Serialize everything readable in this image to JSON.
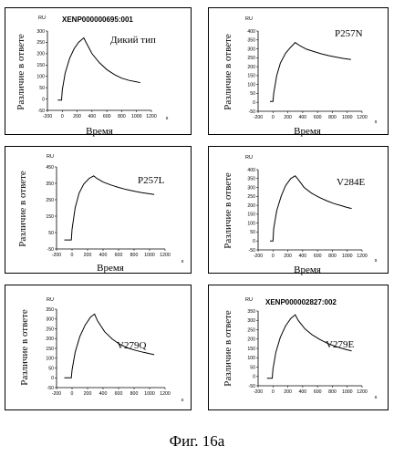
{
  "caption": "Фиг. 16а",
  "chart_data": [
    {
      "type": "line",
      "title": "XENP000000695:001",
      "annotation": "Дикий тип",
      "xlabel": "Время",
      "ylabel": "Различие в ответе",
      "yunit": "RU",
      "xunit": "s",
      "xlim": [
        -200,
        1200
      ],
      "ylim": [
        -50,
        300
      ],
      "xticks": [
        -200,
        0,
        200,
        400,
        600,
        800,
        1000,
        1200
      ],
      "yticks": [
        -50,
        0,
        50,
        100,
        150,
        200,
        250,
        300
      ],
      "points": [
        [
          -60,
          -5
        ],
        [
          -10,
          -5
        ],
        [
          0,
          40
        ],
        [
          40,
          115
        ],
        [
          100,
          180
        ],
        [
          160,
          222
        ],
        [
          220,
          250
        ],
        [
          290,
          270
        ],
        [
          320,
          250
        ],
        [
          400,
          200
        ],
        [
          500,
          160
        ],
        [
          600,
          130
        ],
        [
          700,
          108
        ],
        [
          800,
          92
        ],
        [
          900,
          82
        ],
        [
          1000,
          76
        ],
        [
          1050,
          72
        ]
      ]
    },
    {
      "type": "line",
      "title": "",
      "annotation": "P257N",
      "xlabel": "Время",
      "ylabel": "Различие в ответе",
      "yunit": "RU",
      "xunit": "s",
      "xlim": [
        -200,
        1200
      ],
      "ylim": [
        -50,
        400
      ],
      "xticks": [
        -200,
        0,
        200,
        400,
        600,
        800,
        1000,
        1200
      ],
      "yticks": [
        -50,
        0,
        50,
        100,
        150,
        200,
        250,
        300,
        350,
        400
      ],
      "points": [
        [
          -40,
          5
        ],
        [
          0,
          5
        ],
        [
          10,
          50
        ],
        [
          50,
          150
        ],
        [
          100,
          220
        ],
        [
          170,
          275
        ],
        [
          240,
          310
        ],
        [
          300,
          335
        ],
        [
          360,
          318
        ],
        [
          450,
          298
        ],
        [
          550,
          285
        ],
        [
          650,
          272
        ],
        [
          750,
          262
        ],
        [
          850,
          254
        ],
        [
          950,
          246
        ],
        [
          1050,
          240
        ]
      ]
    },
    {
      "type": "line",
      "title": "",
      "annotation": "P257L",
      "xlabel": "Время",
      "ylabel": "Различие в ответе",
      "yunit": "RU",
      "xunit": "s",
      "xlim": [
        -200,
        1200
      ],
      "ylim": [
        -50,
        450
      ],
      "xticks": [
        -200,
        0,
        200,
        400,
        600,
        800,
        1000,
        1200
      ],
      "yticks": [
        -50,
        50,
        150,
        250,
        350,
        450
      ],
      "points": [
        [
          -100,
          5
        ],
        [
          -10,
          5
        ],
        [
          0,
          70
        ],
        [
          40,
          200
        ],
        [
          90,
          290
        ],
        [
          150,
          345
        ],
        [
          220,
          380
        ],
        [
          280,
          395
        ],
        [
          320,
          380
        ],
        [
          400,
          358
        ],
        [
          500,
          340
        ],
        [
          600,
          325
        ],
        [
          700,
          312
        ],
        [
          800,
          302
        ],
        [
          900,
          293
        ],
        [
          1000,
          286
        ],
        [
          1060,
          282
        ]
      ]
    },
    {
      "type": "line",
      "title": "",
      "annotation": "V284E",
      "xlabel": "Время",
      "ylabel": "Различие в ответе",
      "yunit": "RU",
      "xunit": "s",
      "xlim": [
        -200,
        1200
      ],
      "ylim": [
        -50,
        400
      ],
      "xticks": [
        -200,
        0,
        200,
        400,
        600,
        800,
        1000,
        1200
      ],
      "yticks": [
        -50,
        0,
        50,
        100,
        150,
        200,
        250,
        300,
        350,
        400
      ],
      "points": [
        [
          -40,
          0
        ],
        [
          0,
          0
        ],
        [
          10,
          70
        ],
        [
          50,
          170
        ],
        [
          110,
          250
        ],
        [
          170,
          310
        ],
        [
          240,
          350
        ],
        [
          300,
          365
        ],
        [
          340,
          345
        ],
        [
          420,
          300
        ],
        [
          520,
          268
        ],
        [
          620,
          245
        ],
        [
          720,
          226
        ],
        [
          820,
          210
        ],
        [
          920,
          198
        ],
        [
          1000,
          188
        ],
        [
          1060,
          182
        ]
      ]
    },
    {
      "type": "line",
      "title": "",
      "annotation": "V279Q",
      "xlabel": "",
      "ylabel": "Различие в ответе",
      "yunit": "RU",
      "xunit": "s",
      "xlim": [
        -200,
        1200
      ],
      "ylim": [
        -50,
        350
      ],
      "xticks": [
        -200,
        0,
        200,
        400,
        600,
        800,
        1000,
        1200
      ],
      "yticks": [
        -50,
        0,
        50,
        100,
        150,
        200,
        250,
        300,
        350
      ],
      "points": [
        [
          -100,
          0
        ],
        [
          -10,
          0
        ],
        [
          0,
          40
        ],
        [
          40,
          130
        ],
        [
          100,
          210
        ],
        [
          170,
          270
        ],
        [
          240,
          310
        ],
        [
          290,
          325
        ],
        [
          330,
          290
        ],
        [
          420,
          235
        ],
        [
          520,
          197
        ],
        [
          620,
          170
        ],
        [
          720,
          152
        ],
        [
          820,
          140
        ],
        [
          920,
          130
        ],
        [
          1000,
          123
        ],
        [
          1060,
          118
        ]
      ]
    },
    {
      "type": "line",
      "title": "XENP000002827:002",
      "annotation": "V279E",
      "xlabel": "",
      "ylabel": "Различие в ответе",
      "yunit": "RU",
      "xunit": "s",
      "xlim": [
        -200,
        1200
      ],
      "ylim": [
        -50,
        350
      ],
      "xticks": [
        -200,
        0,
        200,
        400,
        600,
        800,
        1000,
        1200
      ],
      "yticks": [
        -50,
        0,
        50,
        100,
        150,
        200,
        250,
        300,
        350
      ],
      "points": [
        [
          -80,
          -10
        ],
        [
          -10,
          -10
        ],
        [
          0,
          40
        ],
        [
          40,
          130
        ],
        [
          100,
          210
        ],
        [
          170,
          270
        ],
        [
          240,
          310
        ],
        [
          300,
          330
        ],
        [
          340,
          300
        ],
        [
          430,
          255
        ],
        [
          530,
          222
        ],
        [
          630,
          198
        ],
        [
          730,
          178
        ],
        [
          830,
          162
        ],
        [
          930,
          150
        ],
        [
          1000,
          142
        ],
        [
          1060,
          137
        ]
      ]
    }
  ]
}
